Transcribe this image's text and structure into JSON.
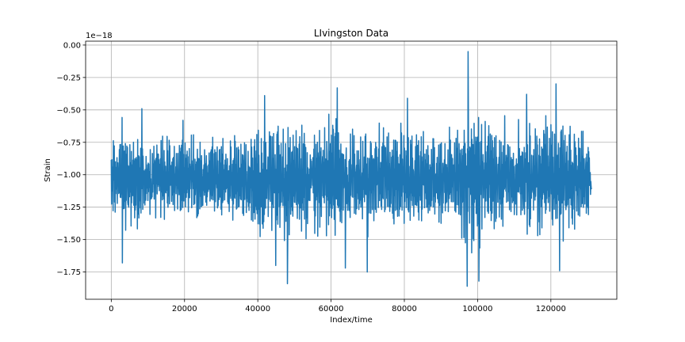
{
  "chart_data": {
    "type": "line",
    "title": "LIvingston Data",
    "xlabel": "Index/time",
    "ylabel": "Strain",
    "y_offset_text": "1e−18",
    "xlim": [
      -7000,
      138000
    ],
    "ylim": [
      -1.96,
      0.03
    ],
    "y_scale_multiplier": 1e-18,
    "grid": true,
    "x_ticks": [
      0,
      20000,
      40000,
      60000,
      80000,
      100000,
      120000
    ],
    "x_tick_labels": [
      "0",
      "20000",
      "40000",
      "60000",
      "80000",
      "100000",
      "120000"
    ],
    "y_ticks": [
      0.0,
      -0.25,
      -0.5,
      -0.75,
      -1.0,
      -1.25,
      -1.5,
      -1.75
    ],
    "y_tick_labels": [
      "0.00",
      "−0.25",
      "−0.50",
      "−0.75",
      "−1.00",
      "−1.25",
      "−1.50",
      "−1.75"
    ],
    "series": [
      {
        "color": "#1f77b4",
        "line_width": 1.5,
        "x_range": [
          0,
          131072
        ],
        "baseline": -1.03,
        "envelope": [
          [
            0,
            0.28
          ],
          [
            2000,
            0.43
          ],
          [
            3000,
            0.45
          ],
          [
            5000,
            0.42
          ],
          [
            8000,
            0.45
          ],
          [
            10000,
            0.37
          ],
          [
            14000,
            0.41
          ],
          [
            18000,
            0.42
          ],
          [
            20000,
            0.43
          ],
          [
            25000,
            0.33
          ],
          [
            30000,
            0.35
          ],
          [
            35000,
            0.37
          ],
          [
            39000,
            0.45
          ],
          [
            41000,
            0.55
          ],
          [
            45000,
            0.5
          ],
          [
            48000,
            0.6
          ],
          [
            51000,
            0.45
          ],
          [
            55000,
            0.5
          ],
          [
            58000,
            0.47
          ],
          [
            61000,
            0.58
          ],
          [
            65000,
            0.47
          ],
          [
            68000,
            0.52
          ],
          [
            72000,
            0.42
          ],
          [
            76000,
            0.45
          ],
          [
            81000,
            0.5
          ],
          [
            86000,
            0.45
          ],
          [
            90000,
            0.45
          ],
          [
            94000,
            0.42
          ],
          [
            96000,
            0.5
          ],
          [
            97500,
            0.85
          ],
          [
            99000,
            0.57
          ],
          [
            102000,
            0.5
          ],
          [
            106000,
            0.47
          ],
          [
            110000,
            0.45
          ],
          [
            114000,
            0.55
          ],
          [
            117000,
            0.45
          ],
          [
            121000,
            0.55
          ],
          [
            123000,
            0.62
          ],
          [
            125000,
            0.5
          ],
          [
            128000,
            0.4
          ],
          [
            131072,
            0.33
          ]
        ],
        "peaks": [
          [
            97500,
            -0.05
          ],
          [
            97300,
            -1.86
          ],
          [
            48200,
            -1.84
          ],
          [
            61800,
            -0.33
          ],
          [
            64000,
            -1.72
          ],
          [
            121500,
            -0.3
          ],
          [
            122500,
            -1.74
          ],
          [
            42000,
            -0.39
          ],
          [
            81000,
            -0.41
          ],
          [
            45000,
            -1.7
          ],
          [
            113500,
            -0.38
          ],
          [
            3100,
            -1.68
          ],
          [
            8400,
            -0.49
          ],
          [
            100500,
            -1.82
          ],
          [
            70000,
            -1.75
          ]
        ]
      }
    ]
  }
}
